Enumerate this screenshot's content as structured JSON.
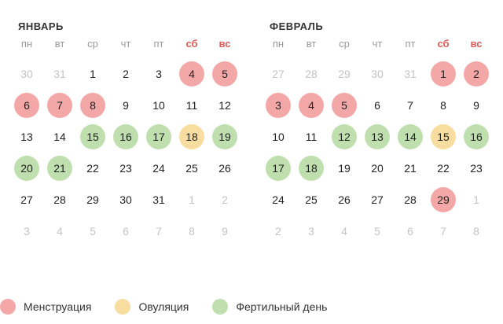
{
  "colors": {
    "menstruation": "#f4a7a7",
    "ovulation": "#f7dea0",
    "fertile": "#bfdfae",
    "weekend": "#e05a5a"
  },
  "weekdays": [
    "пн",
    "вт",
    "ср",
    "чт",
    "пт",
    "сб",
    "вс"
  ],
  "months": [
    {
      "title": "ЯНВАРЬ",
      "days": [
        {
          "n": "30",
          "t": "other"
        },
        {
          "n": "31",
          "t": "other"
        },
        {
          "n": "1",
          "t": ""
        },
        {
          "n": "2",
          "t": ""
        },
        {
          "n": "3",
          "t": ""
        },
        {
          "n": "4",
          "t": "m"
        },
        {
          "n": "5",
          "t": "m"
        },
        {
          "n": "6",
          "t": "m"
        },
        {
          "n": "7",
          "t": "m"
        },
        {
          "n": "8",
          "t": "m"
        },
        {
          "n": "9",
          "t": ""
        },
        {
          "n": "10",
          "t": ""
        },
        {
          "n": "11",
          "t": ""
        },
        {
          "n": "12",
          "t": ""
        },
        {
          "n": "13",
          "t": ""
        },
        {
          "n": "14",
          "t": ""
        },
        {
          "n": "15",
          "t": "f"
        },
        {
          "n": "16",
          "t": "f"
        },
        {
          "n": "17",
          "t": "f"
        },
        {
          "n": "18",
          "t": "o"
        },
        {
          "n": "19",
          "t": "f"
        },
        {
          "n": "20",
          "t": "f"
        },
        {
          "n": "21",
          "t": "f"
        },
        {
          "n": "22",
          "t": ""
        },
        {
          "n": "23",
          "t": ""
        },
        {
          "n": "24",
          "t": ""
        },
        {
          "n": "25",
          "t": ""
        },
        {
          "n": "26",
          "t": ""
        },
        {
          "n": "27",
          "t": ""
        },
        {
          "n": "28",
          "t": ""
        },
        {
          "n": "29",
          "t": ""
        },
        {
          "n": "30",
          "t": ""
        },
        {
          "n": "31",
          "t": ""
        },
        {
          "n": "1",
          "t": "other"
        },
        {
          "n": "2",
          "t": "other"
        },
        {
          "n": "3",
          "t": "other"
        },
        {
          "n": "4",
          "t": "other"
        },
        {
          "n": "5",
          "t": "other"
        },
        {
          "n": "6",
          "t": "other"
        },
        {
          "n": "7",
          "t": "other"
        },
        {
          "n": "8",
          "t": "other"
        },
        {
          "n": "9",
          "t": "other"
        }
      ]
    },
    {
      "title": "ФЕВРАЛЬ",
      "days": [
        {
          "n": "27",
          "t": "other"
        },
        {
          "n": "28",
          "t": "other"
        },
        {
          "n": "29",
          "t": "other"
        },
        {
          "n": "30",
          "t": "other"
        },
        {
          "n": "31",
          "t": "other"
        },
        {
          "n": "1",
          "t": "m"
        },
        {
          "n": "2",
          "t": "m"
        },
        {
          "n": "3",
          "t": "m"
        },
        {
          "n": "4",
          "t": "m"
        },
        {
          "n": "5",
          "t": "m"
        },
        {
          "n": "6",
          "t": ""
        },
        {
          "n": "7",
          "t": ""
        },
        {
          "n": "8",
          "t": ""
        },
        {
          "n": "9",
          "t": ""
        },
        {
          "n": "10",
          "t": ""
        },
        {
          "n": "11",
          "t": ""
        },
        {
          "n": "12",
          "t": "f"
        },
        {
          "n": "13",
          "t": "f"
        },
        {
          "n": "14",
          "t": "f"
        },
        {
          "n": "15",
          "t": "o"
        },
        {
          "n": "16",
          "t": "f"
        },
        {
          "n": "17",
          "t": "f"
        },
        {
          "n": "18",
          "t": "f"
        },
        {
          "n": "19",
          "t": ""
        },
        {
          "n": "20",
          "t": ""
        },
        {
          "n": "21",
          "t": ""
        },
        {
          "n": "22",
          "t": ""
        },
        {
          "n": "23",
          "t": ""
        },
        {
          "n": "24",
          "t": ""
        },
        {
          "n": "25",
          "t": ""
        },
        {
          "n": "26",
          "t": ""
        },
        {
          "n": "27",
          "t": ""
        },
        {
          "n": "28",
          "t": ""
        },
        {
          "n": "29",
          "t": "m"
        },
        {
          "n": "1",
          "t": "other"
        },
        {
          "n": "2",
          "t": "other"
        },
        {
          "n": "3",
          "t": "other"
        },
        {
          "n": "4",
          "t": "other"
        },
        {
          "n": "5",
          "t": "other"
        },
        {
          "n": "6",
          "t": "other"
        },
        {
          "n": "7",
          "t": "other"
        },
        {
          "n": "8",
          "t": "other"
        }
      ]
    }
  ],
  "legend": {
    "menstruation": "Менструация",
    "ovulation": "Овуляция",
    "fertile": "Фертильный день"
  }
}
